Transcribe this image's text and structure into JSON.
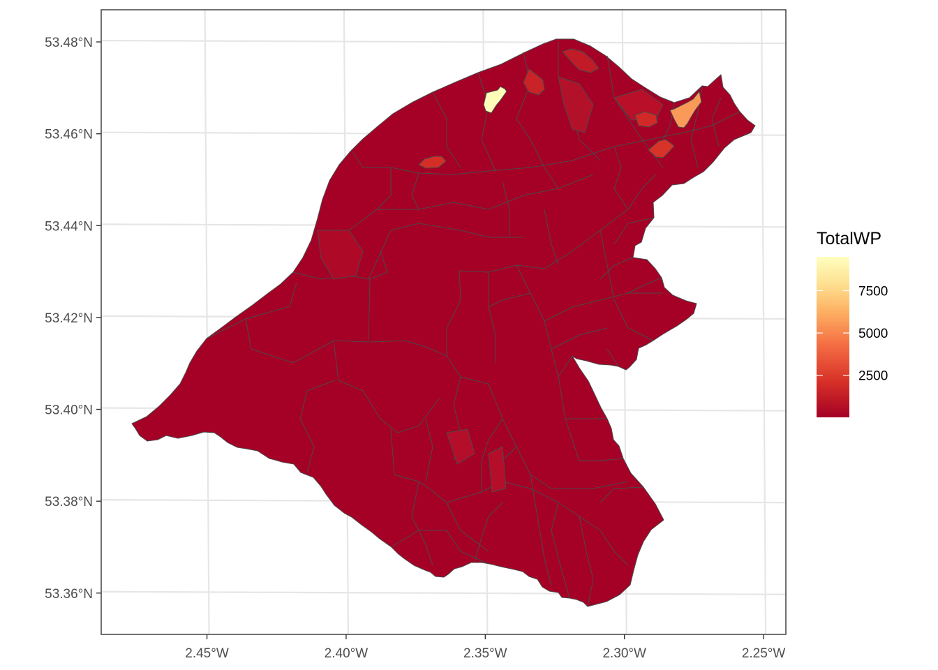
{
  "map": {
    "legend": {
      "title": "TotalWP",
      "ticks": [
        {
          "value": 7500,
          "label": "7500"
        },
        {
          "value": 5000,
          "label": "5000"
        },
        {
          "value": 2500,
          "label": "2500"
        }
      ],
      "range": [
        10,
        9500
      ],
      "colors": [
        "#A50026",
        "#D73027",
        "#F46D43",
        "#FDAE61",
        "#FEE090",
        "#FFFFBF"
      ]
    },
    "x_axis": {
      "ticks": [
        {
          "lon": -2.45,
          "label": "2.45°W"
        },
        {
          "lon": -2.4,
          "label": "2.40°W"
        },
        {
          "lon": -2.35,
          "label": "2.35°W"
        },
        {
          "lon": -2.3,
          "label": "2.30°W"
        },
        {
          "lon": -2.25,
          "label": "2.25°W"
        }
      ],
      "range": [
        -2.488,
        -2.242
      ]
    },
    "y_axis": {
      "ticks": [
        {
          "lat": 53.48,
          "label": "53.48°N"
        },
        {
          "lat": 53.46,
          "label": "53.46°N"
        },
        {
          "lat": 53.44,
          "label": "53.44°N"
        },
        {
          "lat": 53.42,
          "label": "53.42°N"
        },
        {
          "lat": 53.4,
          "label": "53.40°N"
        },
        {
          "lat": 53.38,
          "label": "53.38°N"
        },
        {
          "lat": 53.36,
          "label": "53.36°N"
        }
      ],
      "range": [
        53.351,
        53.487
      ]
    },
    "highlighted_areas": [
      {
        "id": "hotspot-1",
        "value": 9300
      },
      {
        "id": "hotspot-2",
        "value": 5600
      },
      {
        "id": "hotspot-3",
        "value": 2200
      },
      {
        "id": "hotspot-4",
        "value": 2000
      },
      {
        "id": "hotspot-5",
        "value": 1800
      },
      {
        "id": "hotspot-6",
        "value": 1500
      },
      {
        "id": "hotspot-7",
        "value": 1200
      }
    ]
  }
}
